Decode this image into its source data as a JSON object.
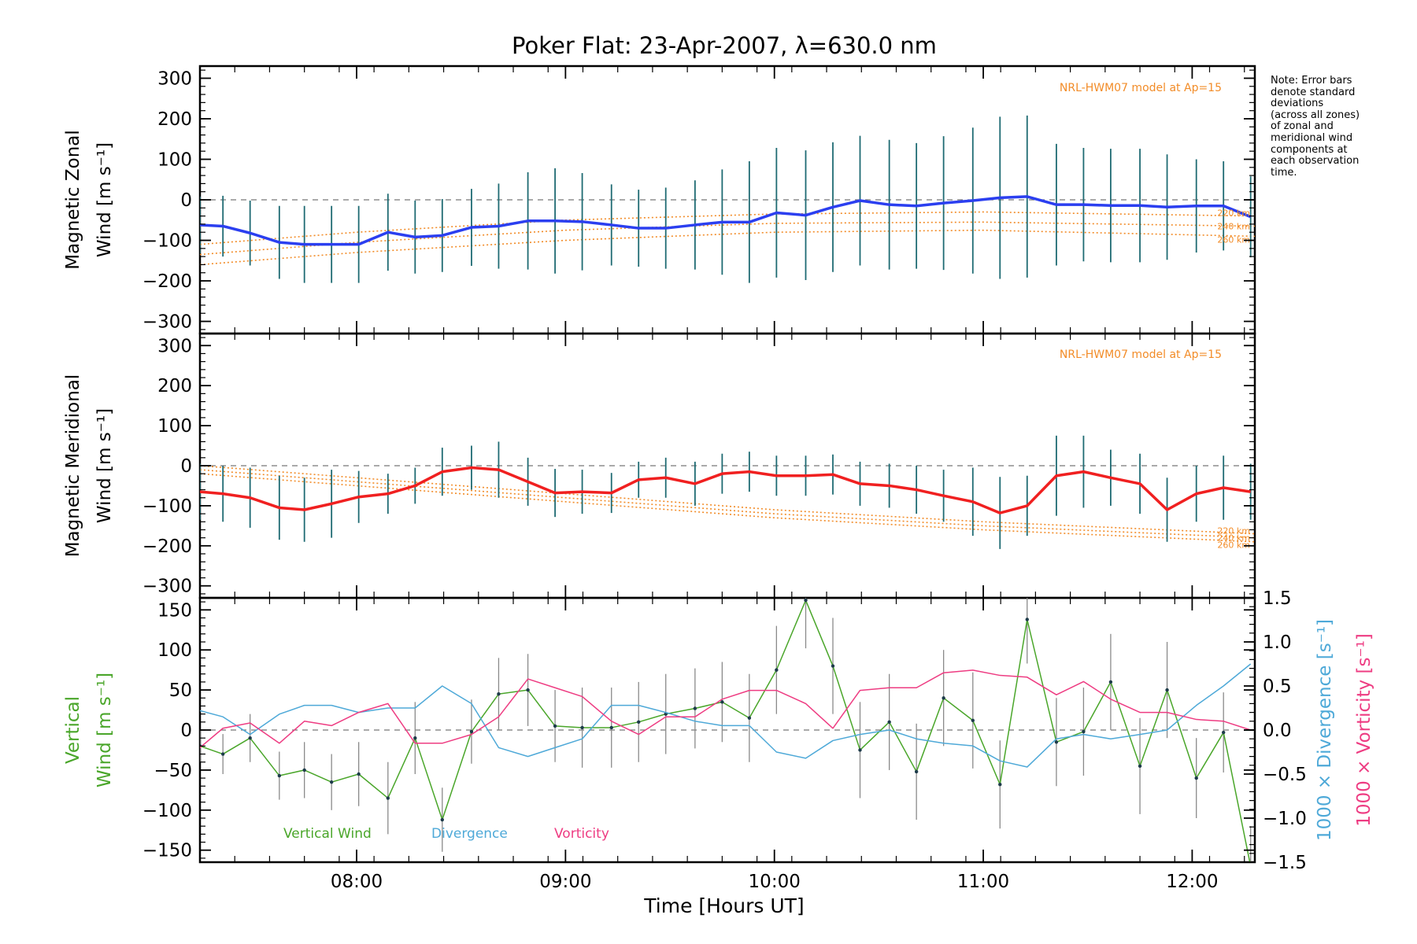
{
  "chart_data": {
    "type": "line",
    "title": "Poker Flat: 23-Apr-2007, λ=630.0 nm",
    "xlabel": "Time [Hours UT]",
    "xlim": [
      7.25,
      12.3
    ],
    "xticks": [
      8.0,
      9.0,
      10.0,
      11.0,
      12.0
    ],
    "xtick_labels": [
      "08:00",
      "09:00",
      "10:00",
      "11:00",
      "12:00"
    ],
    "note": [
      "Note: Error bars",
      "denote standard",
      "deviations",
      "(across all zones)",
      "of zonal and",
      "meridional wind",
      "components at",
      "each observation",
      "time."
    ],
    "panels": [
      {
        "id": "zonal",
        "ylabel_top": "Magnetic Zonal",
        "ylabel_bottom": "Wind [m s⁻¹]",
        "ylim": [
          -330,
          330
        ],
        "yticks": [
          -300,
          -200,
          -100,
          0,
          100,
          200,
          300
        ],
        "ytick_labels": [
          "−300",
          "−200",
          "−100",
          "0",
          "100",
          "200",
          "300"
        ],
        "model_label": "NRL-HWM07 model at Ap=15",
        "model_series": [
          {
            "name": "220 km",
            "x": [
              7.25,
              8.0,
              9.0,
              10.0,
              11.0,
              12.3
            ],
            "y": [
              -110,
              -80,
              -50,
              -35,
              -30,
              -40
            ]
          },
          {
            "name": "240 km",
            "x": [
              7.25,
              8.0,
              9.0,
              10.0,
              11.0,
              12.3
            ],
            "y": [
              -135,
              -105,
              -75,
              -58,
              -55,
              -65
            ]
          },
          {
            "name": "260 km",
            "x": [
              7.25,
              8.0,
              9.0,
              10.0,
              11.0,
              12.3
            ],
            "y": [
              -160,
              -130,
              -100,
              -80,
              -75,
              -90
            ]
          }
        ],
        "series": [
          {
            "name": "Zonal wind",
            "color": "#2b3ff0",
            "x": [
              7.25,
              7.36,
              7.49,
              7.63,
              7.75,
              7.88,
              8.01,
              8.15,
              8.28,
              8.41,
              8.55,
              8.68,
              8.82,
              8.95,
              9.08,
              9.22,
              9.35,
              9.48,
              9.62,
              9.75,
              9.88,
              10.01,
              10.15,
              10.28,
              10.41,
              10.55,
              10.68,
              10.81,
              10.95,
              11.08,
              11.21,
              11.35,
              11.48,
              11.61,
              11.75,
              11.88,
              12.02,
              12.15,
              12.28
            ],
            "y": [
              -62,
              -65,
              -82,
              -105,
              -110,
              -110,
              -110,
              -80,
              -92,
              -88,
              -68,
              -65,
              -52,
              -52,
              -54,
              -62,
              -70,
              -70,
              -62,
              -55,
              -55,
              -32,
              -38,
              -18,
              -2,
              -12,
              -15,
              -8,
              -2,
              5,
              8,
              -12,
              -12,
              -14,
              -14,
              -18,
              -15,
              -15,
              -42
            ],
            "err": [
              70,
              75,
              80,
              90,
              95,
              95,
              95,
              95,
              90,
              90,
              95,
              105,
              120,
              130,
              120,
              100,
              95,
              100,
              110,
              130,
              150,
              160,
              160,
              160,
              160,
              160,
              155,
              165,
              180,
              200,
              200,
              150,
              140,
              140,
              140,
              130,
              115,
              110,
              100
            ]
          }
        ]
      },
      {
        "id": "meridional",
        "ylabel_top": "Magnetic Meridional",
        "ylabel_bottom": "Wind [m s⁻¹]",
        "ylim": [
          -330,
          330
        ],
        "yticks": [
          -300,
          -200,
          -100,
          0,
          100,
          200,
          300
        ],
        "ytick_labels": [
          "−300",
          "−200",
          "−100",
          "0",
          "100",
          "200",
          "300"
        ],
        "model_label": "NRL-HWM07 model at Ap=15",
        "model_series": [
          {
            "name": "220 km",
            "x": [
              7.25,
              8.0,
              9.0,
              10.0,
              11.0,
              12.3
            ],
            "y": [
              0,
              -30,
              -70,
              -110,
              -140,
              -170
            ]
          },
          {
            "name": "240 km",
            "x": [
              7.25,
              8.0,
              9.0,
              10.0,
              11.0,
              12.3
            ],
            "y": [
              -10,
              -40,
              -80,
              -120,
              -150,
              -180
            ]
          },
          {
            "name": "260 km",
            "x": [
              7.25,
              8.0,
              9.0,
              10.0,
              11.0,
              12.3
            ],
            "y": [
              -20,
              -50,
              -90,
              -130,
              -160,
              -190
            ]
          }
        ],
        "series": [
          {
            "name": "Meridional wind",
            "color": "#f02020",
            "x": [
              7.25,
              7.36,
              7.49,
              7.63,
              7.75,
              7.88,
              8.01,
              8.15,
              8.28,
              8.41,
              8.55,
              8.68,
              8.82,
              8.95,
              9.08,
              9.22,
              9.35,
              9.48,
              9.62,
              9.75,
              9.88,
              10.01,
              10.15,
              10.28,
              10.41,
              10.55,
              10.68,
              10.81,
              10.95,
              11.08,
              11.21,
              11.35,
              11.48,
              11.61,
              11.75,
              11.88,
              12.02,
              12.15,
              12.28
            ],
            "y": [
              -65,
              -70,
              -80,
              -105,
              -110,
              -95,
              -78,
              -70,
              -50,
              -15,
              -5,
              -10,
              -40,
              -68,
              -65,
              -68,
              -35,
              -30,
              -45,
              -20,
              -15,
              -25,
              -25,
              -22,
              -45,
              -50,
              -60,
              -75,
              -90,
              -118,
              -100,
              -25,
              -15,
              -30,
              -45,
              -110,
              -70,
              -55,
              -65
            ],
            "err": [
              70,
              70,
              75,
              80,
              80,
              85,
              65,
              50,
              45,
              60,
              55,
              70,
              60,
              60,
              55,
              50,
              45,
              50,
              55,
              50,
              50,
              50,
              50,
              50,
              55,
              55,
              60,
              65,
              85,
              90,
              75,
              100,
              90,
              70,
              75,
              80,
              70,
              80,
              70
            ]
          }
        ]
      },
      {
        "id": "vertical",
        "ylabel_top": "Vertical",
        "ylabel_bottom": "Wind [m s⁻¹]",
        "ylim": [
          -165,
          165
        ],
        "yticks": [
          -150,
          -100,
          -50,
          0,
          50,
          100,
          150
        ],
        "ytick_labels": [
          "−150",
          "−100",
          "−50",
          "0",
          "50",
          "100",
          "150"
        ],
        "y2lim": [
          -1.5,
          1.5
        ],
        "y2ticks": [
          -1.5,
          -1.0,
          -0.5,
          0.0,
          0.5,
          1.0,
          1.5
        ],
        "y2tick_labels": [
          "−1.5",
          "−1.0",
          "−0.5",
          "0.0",
          "0.5",
          "1.0",
          "1.5"
        ],
        "y2label_a": "1000 × Divergence [s⁻¹]",
        "y2label_b": "1000 × Vorticity [s⁻¹]",
        "legend": [
          "Vertical Wind",
          "Divergence",
          "Vorticity"
        ],
        "series": [
          {
            "name": "Vertical Wind",
            "color": "#4aa62a",
            "axis": "left",
            "x": [
              7.25,
              7.36,
              7.49,
              7.63,
              7.75,
              7.88,
              8.01,
              8.15,
              8.28,
              8.41,
              8.55,
              8.68,
              8.82,
              8.95,
              9.08,
              9.22,
              9.35,
              9.48,
              9.62,
              9.75,
              9.88,
              10.01,
              10.15,
              10.28,
              10.41,
              10.55,
              10.68,
              10.81,
              10.95,
              11.08,
              11.21,
              11.35,
              11.48,
              11.61,
              11.75,
              11.88,
              12.02,
              12.15,
              12.28
            ],
            "y": [
              -20,
              -30,
              -10,
              -57,
              -50,
              -65,
              -55,
              -85,
              -10,
              -112,
              -2,
              45,
              50,
              5,
              3,
              3,
              10,
              20,
              27,
              35,
              15,
              75,
              162,
              80,
              -25,
              10,
              -52,
              40,
              12,
              -68,
              138,
              -15,
              -2,
              60,
              -45,
              50,
              -60,
              -3,
              -170
            ],
            "err": [
              20,
              25,
              30,
              30,
              35,
              35,
              40,
              45,
              45,
              40,
              40,
              45,
              45,
              45,
              50,
              50,
              50,
              50,
              50,
              50,
              55,
              55,
              60,
              60,
              60,
              60,
              60,
              60,
              60,
              55,
              55,
              55,
              55,
              60,
              60,
              60,
              50,
              50,
              50
            ]
          },
          {
            "name": "Divergence",
            "color": "#4ea9d8",
            "axis": "right",
            "x": [
              7.25,
              7.36,
              7.49,
              7.63,
              7.75,
              7.88,
              8.01,
              8.15,
              8.28,
              8.41,
              8.55,
              8.68,
              8.82,
              8.95,
              9.08,
              9.22,
              9.35,
              9.48,
              9.62,
              9.75,
              9.88,
              10.01,
              10.15,
              10.28,
              10.41,
              10.55,
              10.68,
              10.81,
              10.95,
              11.08,
              11.21,
              11.35,
              11.48,
              11.61,
              11.75,
              11.88,
              12.02,
              12.15,
              12.28
            ],
            "y": [
              0.22,
              0.15,
              -0.05,
              0.18,
              0.28,
              0.28,
              0.2,
              0.25,
              0.25,
              0.5,
              0.3,
              -0.2,
              -0.3,
              -0.2,
              -0.1,
              0.28,
              0.28,
              0.2,
              0.1,
              0.05,
              0.05,
              -0.25,
              -0.32,
              -0.12,
              -0.05,
              0.0,
              -0.1,
              -0.15,
              -0.18,
              -0.35,
              -0.42,
              -0.1,
              -0.05,
              -0.1,
              -0.05,
              0.0,
              0.28,
              0.5,
              0.75
            ]
          },
          {
            "name": "Vorticity",
            "color": "#ee3c82",
            "axis": "right",
            "x": [
              7.25,
              7.36,
              7.49,
              7.63,
              7.75,
              7.88,
              8.01,
              8.15,
              8.28,
              8.41,
              8.55,
              8.68,
              8.82,
              8.95,
              9.08,
              9.22,
              9.35,
              9.48,
              9.62,
              9.75,
              9.88,
              10.01,
              10.15,
              10.28,
              10.41,
              10.55,
              10.68,
              10.81,
              10.95,
              11.08,
              11.21,
              11.35,
              11.48,
              11.61,
              11.75,
              11.88,
              12.02,
              12.15,
              12.28
            ],
            "y": [
              -0.2,
              0.02,
              0.08,
              -0.15,
              0.1,
              0.05,
              0.2,
              0.3,
              -0.15,
              -0.15,
              -0.05,
              0.15,
              0.58,
              0.48,
              0.38,
              0.1,
              -0.05,
              0.15,
              0.15,
              0.35,
              0.45,
              0.45,
              0.3,
              0.02,
              0.45,
              0.48,
              0.48,
              0.65,
              0.68,
              0.62,
              0.6,
              0.4,
              0.55,
              0.35,
              0.2,
              0.2,
              0.12,
              0.1,
              0.0
            ]
          }
        ]
      }
    ]
  }
}
